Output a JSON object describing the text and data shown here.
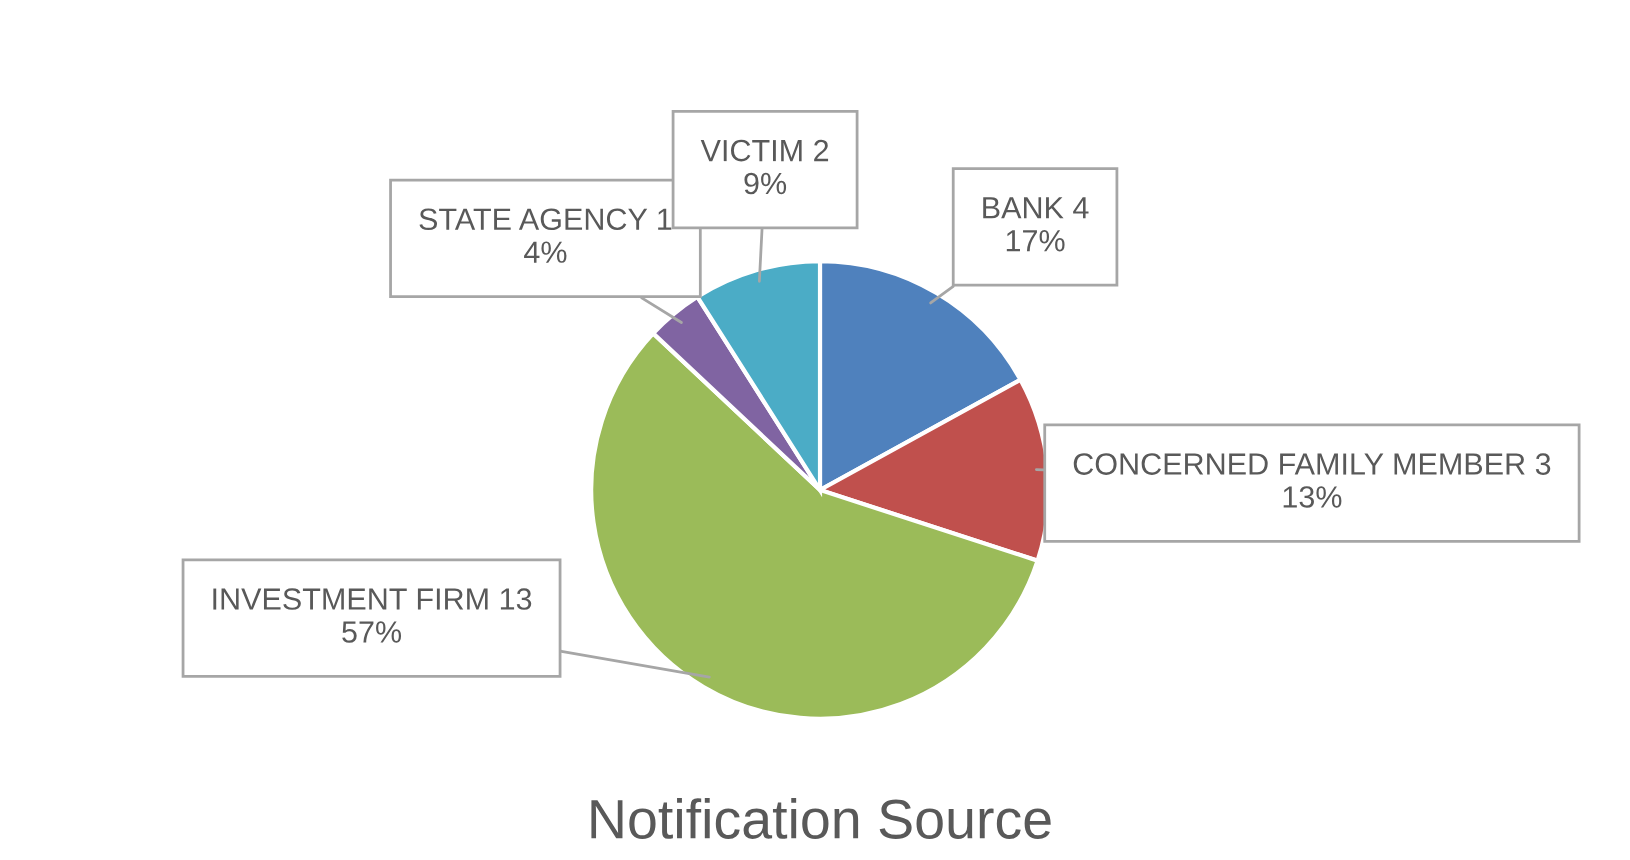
{
  "chart_data": {
    "type": "pie",
    "title": "Notification Source",
    "categories": [
      "BANK 4",
      "CONCERNED FAMILY MEMBER 3",
      "INVESTMENT FIRM 13",
      "STATE AGENCY 1",
      "VICTIM 2"
    ],
    "values": [
      17,
      13,
      57,
      4,
      9
    ],
    "value_labels": [
      "17%",
      "13%",
      "57%",
      "4%",
      "9%"
    ],
    "colors": [
      "#4f81bd",
      "#c0504d",
      "#9bbb59",
      "#8064a2",
      "#4bacc6"
    ],
    "legend": false
  }
}
